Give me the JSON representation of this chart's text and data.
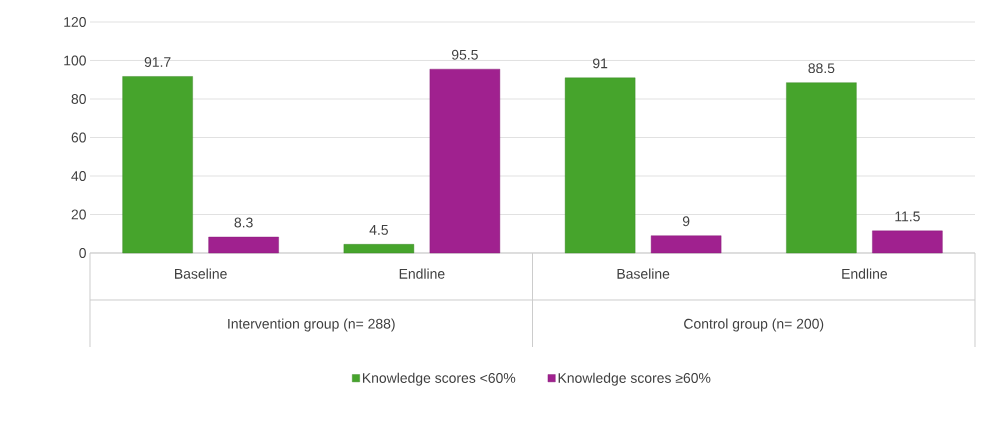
{
  "chart_data": {
    "type": "bar",
    "categories": [
      "Baseline",
      "Endline",
      "Baseline",
      "Endline"
    ],
    "series": [
      {
        "name": "Knowledge scores <60%",
        "color": "#46a42c",
        "values": [
          91.7,
          4.5,
          91,
          88.5
        ]
      },
      {
        "name": "Knowledge scores ≥60%",
        "color": "#a0218f",
        "values": [
          8.3,
          95.5,
          9,
          11.5
        ]
      }
    ],
    "annotations": [
      "Intervention group  (n= 288)",
      "Control group (n= 200)"
    ],
    "ylim": [
      0,
      120
    ],
    "yticks": [
      0,
      20,
      40,
      60,
      80,
      100,
      120
    ],
    "grid": "y",
    "data_labels": true,
    "legend": "bottom"
  }
}
